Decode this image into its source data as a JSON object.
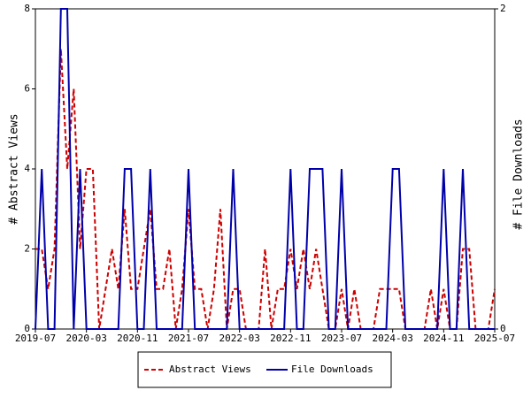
{
  "chart_data": {
    "type": "line",
    "y_label": "# Abstract Views",
    "y2_label": "# File Downloads",
    "categories": [
      "2019-07",
      null,
      null,
      null,
      null,
      null,
      null,
      null,
      "2020-03",
      null,
      null,
      null,
      null,
      null,
      null,
      null,
      "2020-11",
      null,
      null,
      null,
      null,
      null,
      null,
      null,
      "2021-07",
      null,
      null,
      null,
      null,
      null,
      null,
      null,
      "2022-03",
      null,
      null,
      null,
      null,
      null,
      null,
      null,
      "2022-11",
      null,
      null,
      null,
      null,
      null,
      null,
      null,
      "2023-07",
      null,
      null,
      null,
      null,
      null,
      null,
      null,
      "2024-03",
      null,
      null,
      null,
      null,
      null,
      null,
      null,
      "2024-11",
      null,
      null,
      null,
      null,
      null,
      null,
      null,
      "2025-07"
    ],
    "ylim": [
      0,
      8
    ],
    "yticks": [
      0,
      2,
      4,
      6,
      8
    ],
    "y2lim": [
      0,
      2
    ],
    "y2ticks": [
      0,
      2
    ],
    "legend": "bottom",
    "series": [
      {
        "name": "Abstract Views",
        "color": "#cc0000",
        "dashed": true,
        "values": [
          2,
          2,
          1,
          2,
          7,
          4,
          6,
          2,
          4,
          4,
          0,
          1,
          2,
          1,
          3,
          1,
          1,
          2,
          3,
          1,
          1,
          2,
          0,
          1,
          3,
          1,
          1,
          0,
          1,
          3,
          0,
          1,
          1,
          0,
          0,
          0,
          2,
          0,
          1,
          1,
          2,
          1,
          2,
          1,
          2,
          1,
          0,
          0,
          1,
          0,
          1,
          0,
          0,
          0,
          1,
          1,
          1,
          1,
          0,
          0,
          0,
          0,
          1,
          0,
          1,
          0,
          0,
          2,
          2,
          0,
          0,
          0,
          1
        ]
      },
      {
        "name": "File Downloads",
        "color": "#0000aa",
        "axis": "y2",
        "values": [
          0,
          1,
          0,
          0,
          2,
          2,
          0,
          1,
          0,
          0,
          0,
          0,
          0,
          0,
          1,
          1,
          0,
          0,
          1,
          0,
          0,
          0,
          0,
          0,
          1,
          0,
          0,
          0,
          0,
          0,
          0,
          1,
          0,
          0,
          0,
          0,
          0,
          0,
          0,
          0,
          1,
          0,
          0,
          1,
          1,
          1,
          0,
          0,
          1,
          0,
          0,
          0,
          0,
          0,
          0,
          0,
          1,
          1,
          0,
          0,
          0,
          0,
          0,
          0,
          1,
          0,
          0,
          1,
          0,
          0,
          0,
          0,
          0
        ]
      }
    ]
  }
}
